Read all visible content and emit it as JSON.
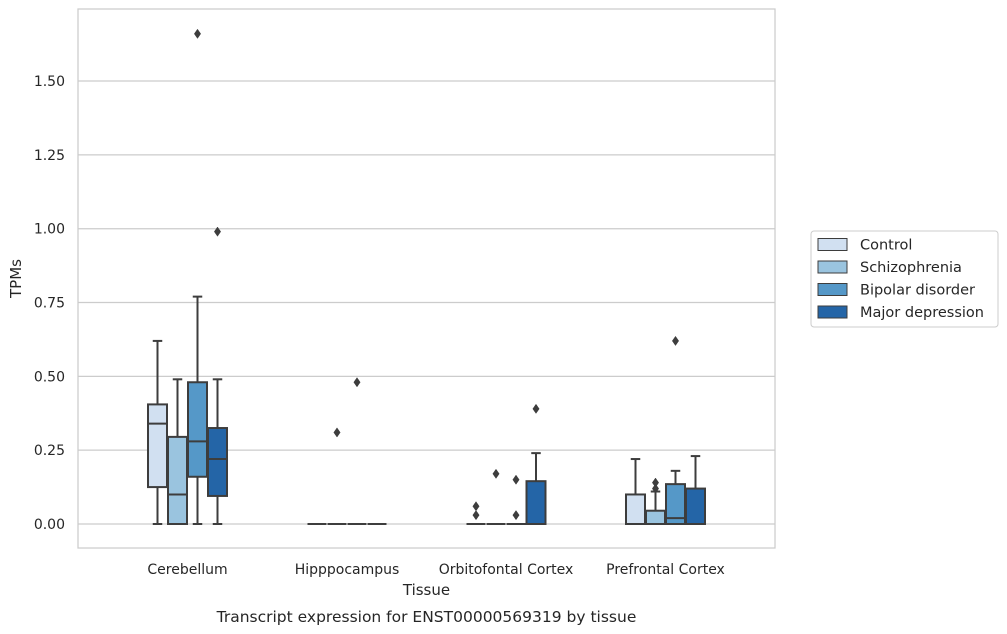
{
  "chart_data": {
    "type": "box",
    "title": "",
    "xlabel": "Tissue",
    "ylabel": "TPMs",
    "caption": "Transcript expression for ENST00000569319 by tissue",
    "ylim": [
      -0.08,
      1.75
    ],
    "yticks": [
      "0.00",
      "0.25",
      "0.50",
      "0.75",
      "1.00",
      "1.25",
      "1.50"
    ],
    "grid": "horizontal",
    "legend_position": "right",
    "categories": [
      "Cerebellum",
      "Hipppocampus",
      "Orbitofontal Cortex",
      "Prefrontal Cortex"
    ],
    "series": [
      {
        "name": "Control",
        "color": "#d1e0f1",
        "boxes": [
          {
            "whislo": 0.0,
            "q1": 0.125,
            "med": 0.34,
            "q3": 0.405,
            "whishi": 0.62,
            "fliers": []
          },
          {
            "whislo": 0.0,
            "q1": 0.0,
            "med": 0.0,
            "q3": 0.0,
            "whishi": 0.0,
            "fliers": []
          },
          {
            "whislo": 0.0,
            "q1": 0.0,
            "med": 0.0,
            "q3": 0.0,
            "whishi": 0.0,
            "fliers": [
              0.03,
              0.06
            ]
          },
          {
            "whislo": 0.0,
            "q1": 0.0,
            "med": 0.0,
            "q3": 0.1,
            "whishi": 0.22,
            "fliers": []
          }
        ]
      },
      {
        "name": "Schizophrenia",
        "color": "#9ac4df",
        "boxes": [
          {
            "whislo": 0.0,
            "q1": 0.0,
            "med": 0.1,
            "q3": 0.295,
            "whishi": 0.49,
            "fliers": []
          },
          {
            "whislo": 0.0,
            "q1": 0.0,
            "med": 0.0,
            "q3": 0.0,
            "whishi": 0.0,
            "fliers": [
              0.31
            ]
          },
          {
            "whislo": 0.0,
            "q1": 0.0,
            "med": 0.0,
            "q3": 0.0,
            "whishi": 0.0,
            "fliers": [
              0.17
            ]
          },
          {
            "whislo": 0.0,
            "q1": 0.0,
            "med": 0.0,
            "q3": 0.045,
            "whishi": 0.11,
            "fliers": [
              0.12,
              0.14
            ]
          }
        ]
      },
      {
        "name": "Bipolar disorder",
        "color": "#5598c8",
        "boxes": [
          {
            "whislo": 0.0,
            "q1": 0.16,
            "med": 0.28,
            "q3": 0.48,
            "whishi": 0.77,
            "fliers": [
              1.66
            ]
          },
          {
            "whislo": 0.0,
            "q1": 0.0,
            "med": 0.0,
            "q3": 0.0,
            "whishi": 0.0,
            "fliers": [
              0.48
            ]
          },
          {
            "whislo": 0.0,
            "q1": 0.0,
            "med": 0.0,
            "q3": 0.0,
            "whishi": 0.0,
            "fliers": [
              0.03,
              0.15
            ]
          },
          {
            "whislo": 0.0,
            "q1": 0.0,
            "med": 0.02,
            "q3": 0.135,
            "whishi": 0.18,
            "fliers": [
              0.62
            ]
          }
        ]
      },
      {
        "name": "Major depression",
        "color": "#2465a7",
        "boxes": [
          {
            "whislo": 0.0,
            "q1": 0.095,
            "med": 0.22,
            "q3": 0.325,
            "whishi": 0.49,
            "fliers": [
              0.99
            ]
          },
          {
            "whislo": 0.0,
            "q1": 0.0,
            "med": 0.0,
            "q3": 0.0,
            "whishi": 0.0,
            "fliers": []
          },
          {
            "whislo": 0.0,
            "q1": 0.0,
            "med": 0.0,
            "q3": 0.145,
            "whishi": 0.24,
            "fliers": [
              0.39
            ]
          },
          {
            "whislo": 0.0,
            "q1": 0.0,
            "med": 0.0,
            "q3": 0.12,
            "whishi": 0.23,
            "fliers": []
          }
        ]
      }
    ]
  }
}
